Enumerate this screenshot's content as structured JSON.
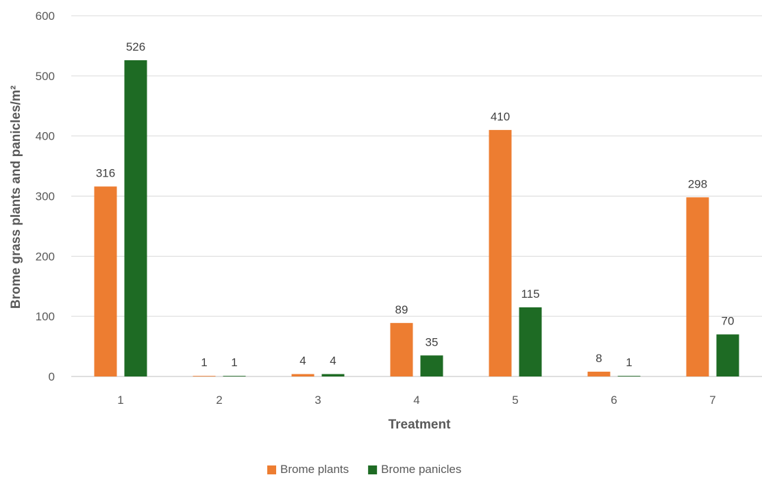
{
  "chart_data": {
    "type": "bar",
    "title": "",
    "xlabel": "Treatment",
    "ylabel": "Brome grass plants and panicles/m²",
    "categories": [
      "1",
      "2",
      "3",
      "4",
      "5",
      "6",
      "7"
    ],
    "ylim": [
      0,
      600
    ],
    "yticks": [
      0,
      100,
      200,
      300,
      400,
      500,
      600
    ],
    "grid": true,
    "legend_position": "bottom",
    "series": [
      {
        "name": "Brome plants",
        "color": "#ED7D31",
        "values": [
          316,
          1,
          4,
          89,
          410,
          8,
          298
        ]
      },
      {
        "name": "Brome panicles",
        "color": "#1E6B24",
        "values": [
          526,
          1,
          4,
          35,
          115,
          1,
          70
        ]
      }
    ]
  }
}
